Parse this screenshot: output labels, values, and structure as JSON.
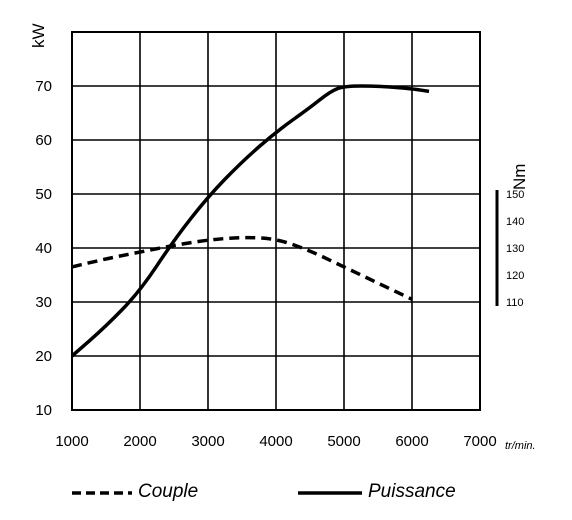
{
  "chart_data": {
    "type": "line",
    "title": "",
    "xlabel_unit": "tr/min.",
    "x_ticks": [
      "1000",
      "2000",
      "3000",
      "4000",
      "5000",
      "6000",
      "7000"
    ],
    "xlim": [
      1000,
      7000
    ],
    "y_left": {
      "label": "kW",
      "ticks": [
        "70",
        "60",
        "50",
        "40",
        "30",
        "20",
        "10"
      ],
      "ylim": [
        10,
        80
      ]
    },
    "y_right": {
      "label": "Nm",
      "ticks": [
        "150",
        "140",
        "130",
        "120",
        "110"
      ],
      "range": [
        110,
        150
      ]
    },
    "series": [
      {
        "name": "Couple",
        "style": "dashed",
        "axis": "y_right",
        "points": [
          [
            1000,
            123
          ],
          [
            1500,
            126
          ],
          [
            2000,
            128.5
          ],
          [
            2500,
            131
          ],
          [
            3000,
            133
          ],
          [
            3500,
            134
          ],
          [
            4000,
            133.5
          ],
          [
            4500,
            129
          ],
          [
            5000,
            123
          ],
          [
            5500,
            117
          ],
          [
            6000,
            111
          ]
        ]
      },
      {
        "name": "Puissance",
        "style": "solid",
        "axis": "y_left",
        "points": [
          [
            1000,
            20
          ],
          [
            1500,
            25.5
          ],
          [
            2000,
            32
          ],
          [
            2500,
            41.5
          ],
          [
            3000,
            49.5
          ],
          [
            3500,
            56
          ],
          [
            4000,
            61.5
          ],
          [
            4500,
            66
          ],
          [
            4800,
            69
          ],
          [
            5000,
            70
          ],
          [
            5500,
            70
          ],
          [
            6000,
            69.5
          ],
          [
            6250,
            69
          ]
        ]
      }
    ],
    "grid": true,
    "legend_position": "bottom"
  }
}
